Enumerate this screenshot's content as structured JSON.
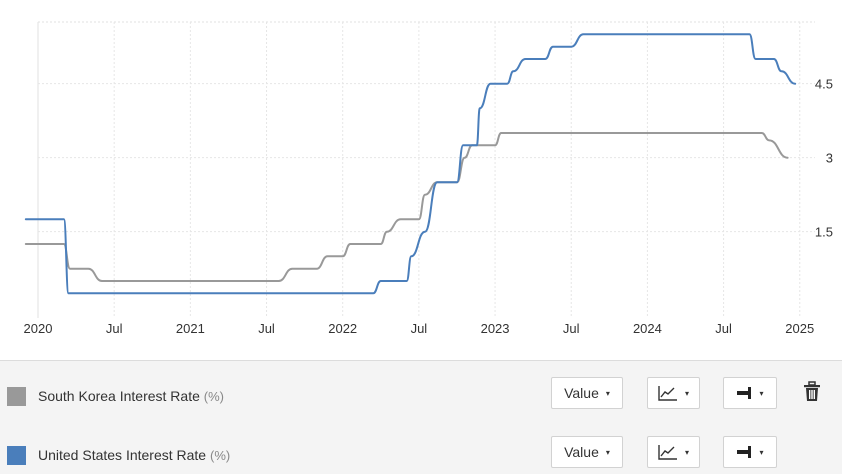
{
  "chart_data": {
    "type": "line",
    "title": "",
    "xlabel": "",
    "ylabel": "",
    "x_ticks": [
      "2020",
      "Jul",
      "2021",
      "Jul",
      "2022",
      "Jul",
      "2023",
      "Jul",
      "2024",
      "Jul",
      "2025"
    ],
    "x_tick_dates": [
      2020.0,
      2020.5,
      2021.0,
      2021.5,
      2022.0,
      2022.5,
      2023.0,
      2023.5,
      2024.0,
      2024.5,
      2025.0
    ],
    "y_ticks": [
      "1.5",
      "3",
      "4.5"
    ],
    "y_tick_values": [
      1.5,
      3,
      4.5
    ],
    "ylim": [
      -0.25,
      5.75
    ],
    "xlim": [
      2020.0,
      2025.1
    ],
    "grid": true,
    "series": [
      {
        "name": "South Korea Interest Rate",
        "color": "#999999",
        "points": [
          [
            2019.92,
            1.25
          ],
          [
            2020.17,
            1.25
          ],
          [
            2020.21,
            0.75
          ],
          [
            2020.33,
            0.75
          ],
          [
            2020.42,
            0.5
          ],
          [
            2021.58,
            0.5
          ],
          [
            2021.67,
            0.75
          ],
          [
            2021.83,
            0.75
          ],
          [
            2021.9,
            1.0
          ],
          [
            2022.0,
            1.0
          ],
          [
            2022.05,
            1.25
          ],
          [
            2022.25,
            1.25
          ],
          [
            2022.29,
            1.5
          ],
          [
            2022.38,
            1.75
          ],
          [
            2022.5,
            1.75
          ],
          [
            2022.54,
            2.25
          ],
          [
            2022.62,
            2.5
          ],
          [
            2022.75,
            2.5
          ],
          [
            2022.8,
            3.0
          ],
          [
            2022.85,
            3.25
          ],
          [
            2023.0,
            3.25
          ],
          [
            2023.04,
            3.5
          ],
          [
            2024.75,
            3.5
          ],
          [
            2024.8,
            3.35
          ],
          [
            2024.92,
            3.0
          ]
        ]
      },
      {
        "name": "United States Interest Rate",
        "color": "#4a7ebb",
        "points": [
          [
            2019.92,
            1.75
          ],
          [
            2020.17,
            1.75
          ],
          [
            2020.2,
            0.25
          ],
          [
            2022.2,
            0.25
          ],
          [
            2022.25,
            0.5
          ],
          [
            2022.42,
            0.5
          ],
          [
            2022.45,
            1.0
          ],
          [
            2022.54,
            1.5
          ],
          [
            2022.62,
            2.5
          ],
          [
            2022.75,
            2.5
          ],
          [
            2022.79,
            3.25
          ],
          [
            2022.88,
            3.25
          ],
          [
            2022.9,
            4.0
          ],
          [
            2022.97,
            4.5
          ],
          [
            2023.08,
            4.5
          ],
          [
            2023.12,
            4.75
          ],
          [
            2023.2,
            5.0
          ],
          [
            2023.33,
            5.0
          ],
          [
            2023.38,
            5.25
          ],
          [
            2023.5,
            5.25
          ],
          [
            2023.58,
            5.5
          ],
          [
            2024.67,
            5.5
          ],
          [
            2024.71,
            5.0
          ],
          [
            2024.83,
            5.0
          ],
          [
            2024.88,
            4.75
          ],
          [
            2024.97,
            4.5
          ]
        ]
      }
    ]
  },
  "legend": {
    "rows": [
      {
        "label": "South Korea Interest Rate",
        "unit": "(%)",
        "color": "#999999",
        "value_label": "Value",
        "caret": "▾",
        "chart_type_icon": "line-chart-icon",
        "axis_icon": "axis-align-icon",
        "show_trash": true
      },
      {
        "label": "United States Interest Rate",
        "unit": "(%)",
        "color": "#4a7ebb",
        "value_label": "Value",
        "caret": "▾",
        "chart_type_icon": "line-chart-icon",
        "axis_icon": "axis-align-icon",
        "show_trash": false
      }
    ],
    "trash_icon": "trash-icon"
  }
}
